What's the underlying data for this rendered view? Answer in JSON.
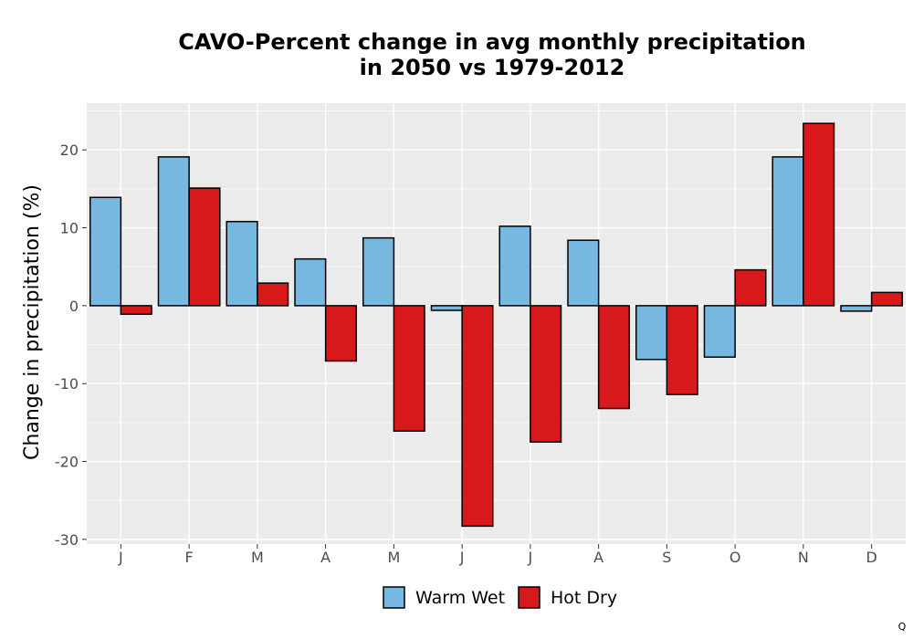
{
  "chart_data": {
    "type": "bar",
    "title": "CAVO-Percent change in avg monthly precipitation\nin 2050 vs 1979-2012",
    "xlabel": "",
    "ylabel": "Change in precipitation (%)",
    "categories": [
      "J",
      "F",
      "M",
      "A",
      "M",
      "J",
      "J",
      "A",
      "S",
      "O",
      "N",
      "D"
    ],
    "series": [
      {
        "name": "Warm Wet",
        "color": "#76b8e0",
        "values": [
          13.9,
          19.1,
          10.8,
          6.0,
          8.7,
          -0.6,
          10.2,
          8.4,
          -6.9,
          -6.6,
          19.1,
          -0.7
        ]
      },
      {
        "name": "Hot Dry",
        "color": "#d7191c",
        "values": [
          -1.1,
          15.1,
          2.9,
          -7.1,
          -16.1,
          -28.3,
          -17.5,
          -13.2,
          -11.4,
          4.6,
          23.4,
          1.7
        ]
      }
    ],
    "ylim": [
      -30.6,
      26
    ],
    "yticks": [
      -30,
      -20,
      -10,
      0,
      10,
      20
    ],
    "legend_position": "bottom",
    "grid": true,
    "panel_background": "#ebebeb",
    "bar_outline": "#000000"
  },
  "footer_mark": "Q"
}
